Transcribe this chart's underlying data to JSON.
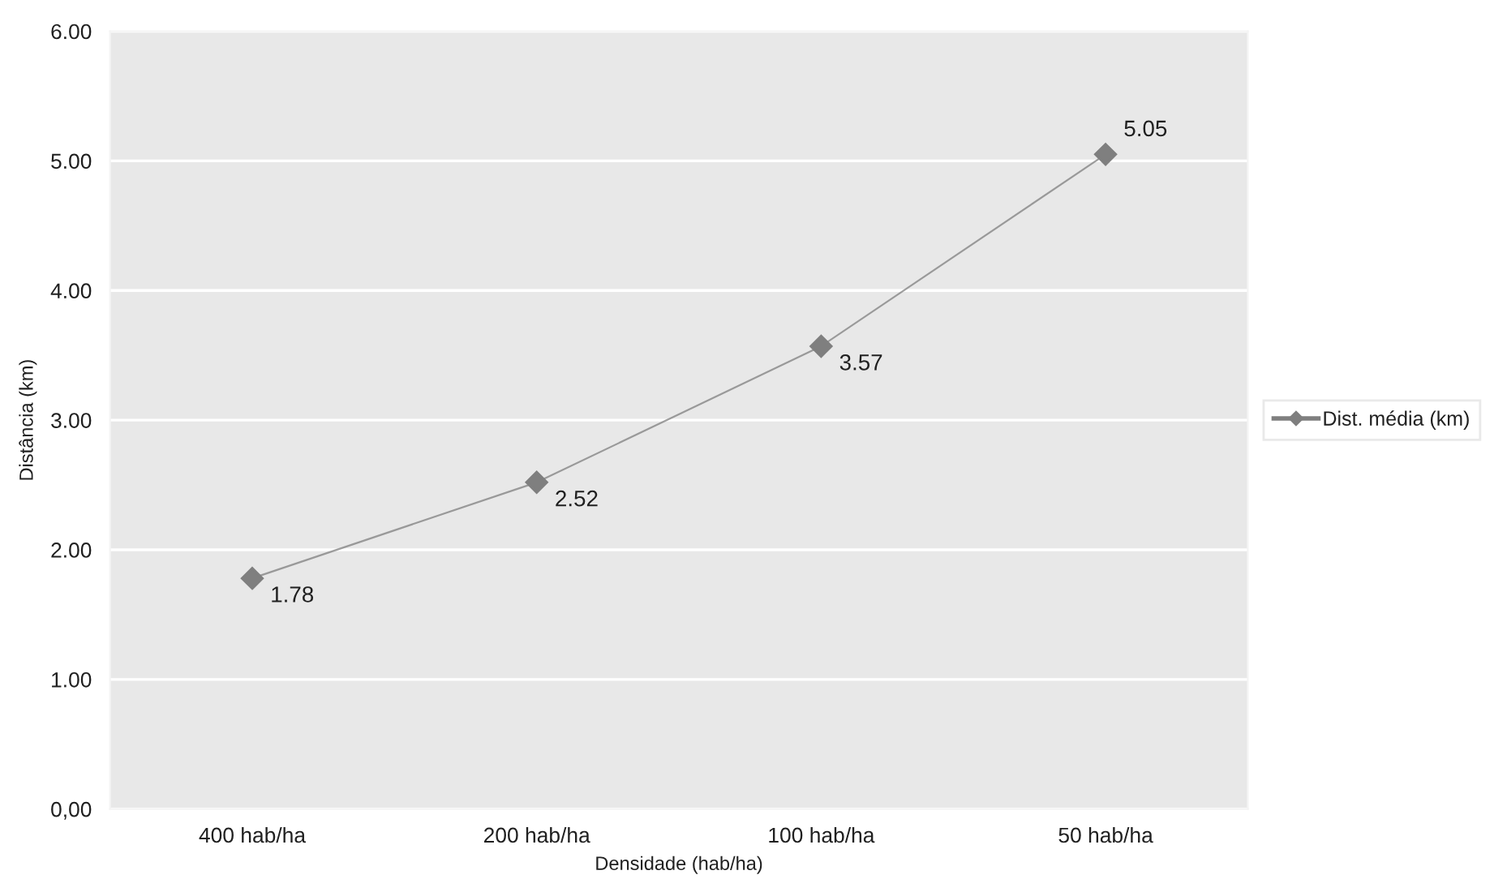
{
  "chart_data": {
    "type": "line",
    "xlabel": "Densidade (hab/ha)",
    "ylabel": "Distância (km)",
    "categories": [
      "400 hab/ha",
      "200 hab/ha",
      "100 hab/ha",
      "50 hab/ha"
    ],
    "series": [
      {
        "name": "Dist. média (km)",
        "color": "#7f7f7f",
        "values": [
          1.78,
          2.52,
          3.57,
          5.05
        ]
      }
    ],
    "ylim": [
      0,
      6
    ],
    "yticks": [
      {
        "value": 0,
        "label": "0,00"
      },
      {
        "value": 1,
        "label": "1.00"
      },
      {
        "value": 2,
        "label": "2.00"
      },
      {
        "value": 3,
        "label": "3.00"
      },
      {
        "value": 4,
        "label": "4.00"
      },
      {
        "value": 5,
        "label": "5.00"
      },
      {
        "value": 6,
        "label": "6.00"
      }
    ],
    "grid": "y",
    "legend": "right",
    "marker": "diamond",
    "line_style": "solid",
    "data_labels": true
  }
}
